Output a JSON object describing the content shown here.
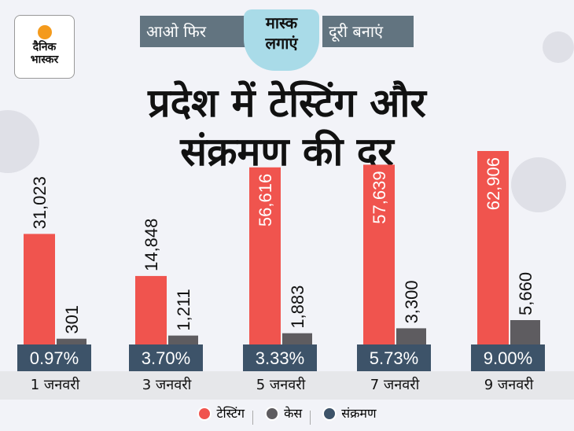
{
  "header": {
    "logo_text": [
      "दैनिक",
      "भास्कर"
    ],
    "banner_left": "आओ फिर",
    "banner_mask": [
      "मास्क",
      "लगाएं"
    ],
    "banner_right": "दूरी बनाएं"
  },
  "chart_data": {
    "type": "bar",
    "title": [
      "प्रदेश में टेस्टिंग और",
      "संक्रमण की दर"
    ],
    "categories": [
      "1 जनवरी",
      "3 जनवरी",
      "5 जनवरी",
      "7 जनवरी",
      "9 जनवरी"
    ],
    "series": [
      {
        "name": "टेस्टिंग",
        "color": "#f0544e",
        "values": [
          31023,
          14848,
          56616,
          57639,
          62906
        ],
        "labels": [
          "31,023",
          "14,848",
          "56,616",
          "57,639",
          "62,906"
        ]
      },
      {
        "name": "केस",
        "color": "#5e5c60",
        "values": [
          301,
          1211,
          1883,
          3300,
          5660
        ],
        "labels": [
          "301",
          "1,211",
          "1,883",
          "3,300",
          "5,660"
        ]
      },
      {
        "name": "संक्रमण",
        "color": "#3d5369",
        "values": [
          0.97,
          3.7,
          3.33,
          5.73,
          9.0
        ],
        "labels": [
          "0.97%",
          "3.70%",
          "3.33%",
          "5.73%",
          "9.00%"
        ]
      }
    ],
    "legend": "bottom",
    "grid": false
  }
}
